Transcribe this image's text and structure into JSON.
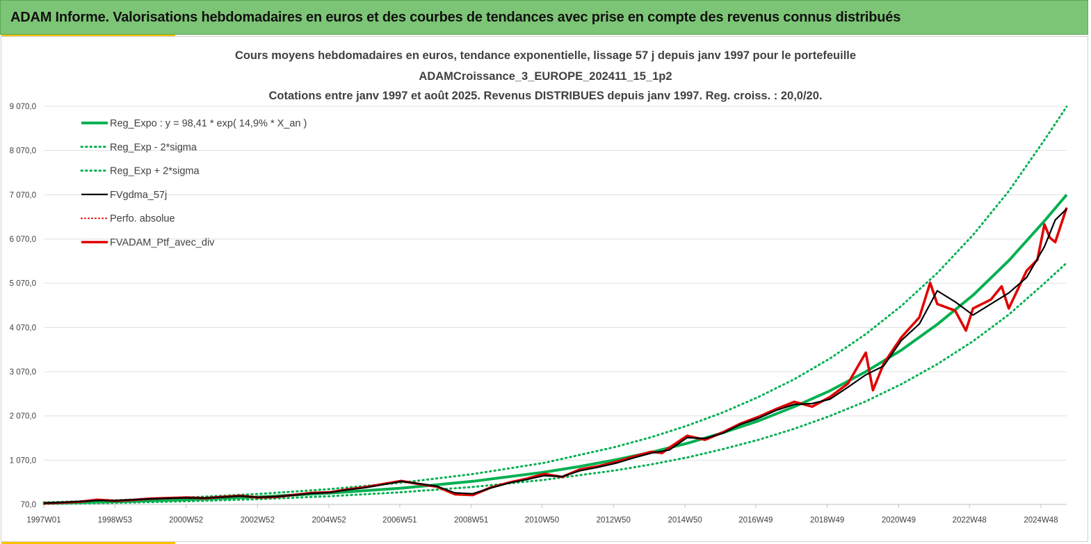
{
  "header": {
    "title": "ADAM Informe. Valorisations hebdomadaires en euros et des courbes de tendances avec prise en compte des revenus connus distribués"
  },
  "colors": {
    "header_bg": "#7dc576",
    "accent": "#ffc000",
    "reg_expo": "#00b050",
    "sigma": "#00b050",
    "fvgdma": "#000000",
    "perfo": "#e00000",
    "fvadam": "#e00000",
    "grid": "#e0e0e0"
  },
  "chart_data": {
    "type": "line",
    "title_lines": [
      "Cours moyens hebdomadaires  en euros, tendance exponentielle, lissage 57 j depuis janv 1997 pour le portefeuille",
      "ADAMCroissance_3_EUROPE_202411_15_1p2",
      "Cotations  entre janv 1997 et août 2025. Revenus DISTRIBUES depuis janv 1997. Reg. croiss. : 20,0/20."
    ],
    "xlabel": "",
    "ylabel": "",
    "x_range": [
      1997.0,
      2025.62
    ],
    "ylim": [
      70,
      9070
    ],
    "grid": "horizontal",
    "legend_position": "top-left",
    "x_ticks": [
      {
        "x": 1997.0,
        "label": "1997W01"
      },
      {
        "x": 1998.99,
        "label": "1998W53"
      },
      {
        "x": 2000.98,
        "label": "2000W52"
      },
      {
        "x": 2002.98,
        "label": "2002W52"
      },
      {
        "x": 2004.98,
        "label": "2004W52"
      },
      {
        "x": 2006.96,
        "label": "2006W51"
      },
      {
        "x": 2008.96,
        "label": "2008W51"
      },
      {
        "x": 2010.94,
        "label": "2010W50"
      },
      {
        "x": 2012.94,
        "label": "2012W50"
      },
      {
        "x": 2014.94,
        "label": "2014W50"
      },
      {
        "x": 2016.92,
        "label": "2016W49"
      },
      {
        "x": 2018.92,
        "label": "2018W49"
      },
      {
        "x": 2020.92,
        "label": "2020W49"
      },
      {
        "x": 2022.9,
        "label": "2022W48"
      },
      {
        "x": 2024.9,
        "label": "2024W48"
      }
    ],
    "y_ticks": [
      {
        "y": 70,
        "label": "70,0"
      },
      {
        "y": 1070,
        "label": "1 070,0"
      },
      {
        "y": 2070,
        "label": "2 070,0"
      },
      {
        "y": 3070,
        "label": "3 070,0"
      },
      {
        "y": 4070,
        "label": "4 070,0"
      },
      {
        "y": 5070,
        "label": "5 070,0"
      },
      {
        "y": 6070,
        "label": "6 070,0"
      },
      {
        "y": 7070,
        "label": "7 070,0"
      },
      {
        "y": 8070,
        "label": "8 070,0"
      },
      {
        "y": 9070,
        "label": "9 070,0"
      }
    ],
    "series": [
      {
        "key": "reg_expo",
        "name": "Reg_Expo : y = 98,41 * exp( 14,9% *  X_an )",
        "style": "solid-thick",
        "x": [
          1997,
          1999,
          2001,
          2003,
          2005,
          2007,
          2009,
          2011,
          2012,
          2013,
          2014,
          2015,
          2016,
          2017,
          2018,
          2019,
          2020,
          2021,
          2022,
          2023,
          2024,
          2025,
          2025.62
        ],
        "y": [
          98,
          132,
          178,
          240,
          325,
          438,
          592,
          799,
          928,
          1078,
          1250,
          1450,
          1690,
          1960,
          2280,
          2640,
          3070,
          3560,
          4140,
          4800,
          5580,
          6480,
          7070
        ]
      },
      {
        "key": "reg_minus",
        "name": "Reg_Exp - 2*sigma",
        "style": "dotted",
        "x": [
          1997,
          1999,
          2001,
          2003,
          2005,
          2007,
          2009,
          2011,
          2013,
          2014,
          2015,
          2016,
          2017,
          2018,
          2019,
          2020,
          2021,
          2022,
          2023,
          2024,
          2025,
          2025.62
        ],
        "y": [
          80,
          105,
          140,
          188,
          255,
          345,
          465,
          625,
          840,
          975,
          1130,
          1320,
          1530,
          1780,
          2070,
          2400,
          2790,
          3240,
          3760,
          4360,
          5070,
          5530
        ]
      },
      {
        "key": "reg_plus",
        "name": "Reg_Exp + 2*sigma",
        "style": "dotted",
        "x": [
          1997,
          1999,
          2001,
          2003,
          2005,
          2007,
          2009,
          2011,
          2013,
          2014,
          2015,
          2016,
          2017,
          2018,
          2019,
          2020,
          2021,
          2022,
          2023,
          2024,
          2025,
          2025.62
        ],
        "y": [
          115,
          165,
          225,
          305,
          415,
          560,
          755,
          1010,
          1370,
          1590,
          1850,
          2150,
          2500,
          2900,
          3370,
          3920,
          4560,
          5300,
          6160,
          7150,
          8310,
          9060
        ]
      },
      {
        "key": "fvgdma",
        "name": "FVgdma_57j",
        "style": "solid-black",
        "x": [
          1997,
          1997.5,
          1998,
          1998.5,
          1999,
          1999.5,
          2000,
          2000.5,
          2001,
          2001.5,
          2002,
          2002.5,
          2003,
          2003.5,
          2004,
          2004.5,
          2005,
          2005.5,
          2006,
          2006.5,
          2007,
          2007.5,
          2008,
          2008.5,
          2009,
          2009.5,
          2010,
          2010.5,
          2011,
          2011.5,
          2012,
          2012.5,
          2013,
          2013.5,
          2014,
          2014.5,
          2015,
          2015.5,
          2016,
          2016.5,
          2017,
          2017.5,
          2018,
          2018.5,
          2019,
          2019.5,
          2020,
          2020.5,
          2021,
          2021.5,
          2022,
          2022.5,
          2023,
          2023.5,
          2024,
          2024.5,
          2025,
          2025.3,
          2025.62
        ],
        "y": [
          100,
          115,
          135,
          160,
          155,
          175,
          195,
          210,
          220,
          215,
          235,
          260,
          230,
          245,
          280,
          320,
          340,
          400,
          450,
          520,
          590,
          540,
          480,
          330,
          310,
          440,
          550,
          630,
          720,
          700,
          830,
          910,
          1000,
          1120,
          1230,
          1300,
          1580,
          1560,
          1680,
          1880,
          2020,
          2200,
          2330,
          2350,
          2450,
          2720,
          3000,
          3200,
          3780,
          4150,
          4900,
          4650,
          4350,
          4600,
          4850,
          5200,
          5900,
          6500,
          6750
        ]
      },
      {
        "key": "perfo",
        "name": "Perfo. absolue",
        "style": "dotted-red",
        "x": [
          1997,
          2001,
          2005,
          2009,
          2013,
          2017,
          2021,
          2025.62
        ],
        "y": [
          100,
          220,
          340,
          310,
          1000,
          2020,
          3780,
          6750
        ]
      },
      {
        "key": "fvadam",
        "name": "FVADAM_Ptf_avec_div",
        "style": "solid-red",
        "x": [
          1997,
          1997.5,
          1998,
          1998.5,
          1999,
          1999.5,
          2000,
          2000.5,
          2001,
          2001.5,
          2002,
          2002.5,
          2003,
          2003.5,
          2004,
          2004.5,
          2005,
          2005.5,
          2006,
          2006.5,
          2007,
          2007.5,
          2008,
          2008.5,
          2009,
          2009.5,
          2010,
          2010.5,
          2011,
          2011.5,
          2012,
          2012.5,
          2013,
          2013.5,
          2014,
          2014.3,
          2014.5,
          2015,
          2015.5,
          2016,
          2016.5,
          2017,
          2017.5,
          2018,
          2018.5,
          2019,
          2019.5,
          2020,
          2020.2,
          2020.5,
          2021,
          2021.5,
          2021.8,
          2022,
          2022.5,
          2022.8,
          2023,
          2023.5,
          2023.8,
          2024,
          2024.5,
          2024.8,
          2025,
          2025.15,
          2025.3,
          2025.62
        ],
        "y": [
          95,
          110,
          130,
          175,
          150,
          170,
          200,
          215,
          225,
          210,
          240,
          265,
          225,
          240,
          285,
          330,
          345,
          410,
          460,
          530,
          600,
          530,
          470,
          300,
          280,
          450,
          560,
          650,
          760,
          690,
          860,
          930,
          1030,
          1150,
          1260,
          1230,
          1350,
          1620,
          1530,
          1700,
          1900,
          2050,
          2230,
          2390,
          2280,
          2500,
          2800,
          3500,
          2650,
          3250,
          3850,
          4300,
          5080,
          4600,
          4450,
          4000,
          4500,
          4700,
          5000,
          4500,
          5350,
          5600,
          6400,
          6100,
          6000,
          6780
        ]
      }
    ]
  }
}
